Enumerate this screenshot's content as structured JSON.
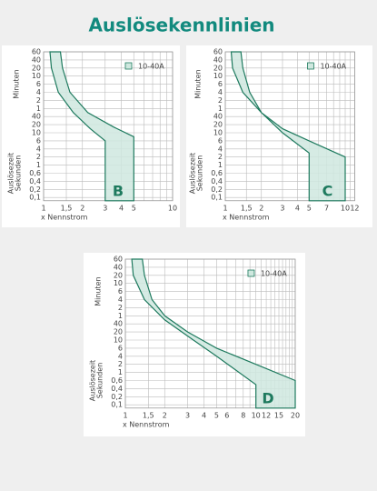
{
  "title": "Auslösekennlinien",
  "panels": [
    {
      "letter": "B",
      "legend": "10-40A",
      "y_upper": "Minuten",
      "y_lower_1": "Auslösezeit",
      "y_lower_2": "Sekunden",
      "x_axis": "x Nennstrom",
      "y_labels": [
        "60",
        "40",
        "20",
        "10",
        "6",
        "4",
        "2",
        "1",
        "40",
        "20",
        "10",
        "6",
        "4",
        "2",
        "1",
        "0,6",
        "0,4",
        "0,2",
        "0,1"
      ],
      "x_labels": [
        "1",
        "1,5",
        "2",
        "3",
        "4",
        "5",
        "10"
      ]
    },
    {
      "letter": "C",
      "legend": "10-40A",
      "y_upper": "Minuten",
      "y_lower_1": "Auslösezeit",
      "y_lower_2": "Sekunden",
      "x_axis": "x Nennstrom",
      "y_labels": [
        "60",
        "40",
        "20",
        "10",
        "6",
        "4",
        "2",
        "1",
        "40",
        "20",
        "10",
        "6",
        "4",
        "2",
        "1",
        "0,6",
        "0,4",
        "0,2",
        "0,1"
      ],
      "x_labels": [
        "1",
        "1,5",
        "2",
        "3",
        "4",
        "5",
        "7",
        "10",
        "12"
      ]
    },
    {
      "letter": "D",
      "legend": "10-40A",
      "y_upper": "Minuten",
      "y_lower_1": "Auslösezeit",
      "y_lower_2": "Sekunden",
      "x_axis": "x Nennstrom",
      "y_labels": [
        "60",
        "40",
        "20",
        "10",
        "6",
        "4",
        "2",
        "1",
        "40",
        "20",
        "10",
        "6",
        "4",
        "2",
        "1",
        "0,6",
        "0,4",
        "0,2",
        "0,1"
      ],
      "x_labels": [
        "1",
        "1,5",
        "2",
        "3",
        "4",
        "5",
        "6",
        "8",
        "10",
        "12",
        "15",
        "20"
      ]
    }
  ]
}
